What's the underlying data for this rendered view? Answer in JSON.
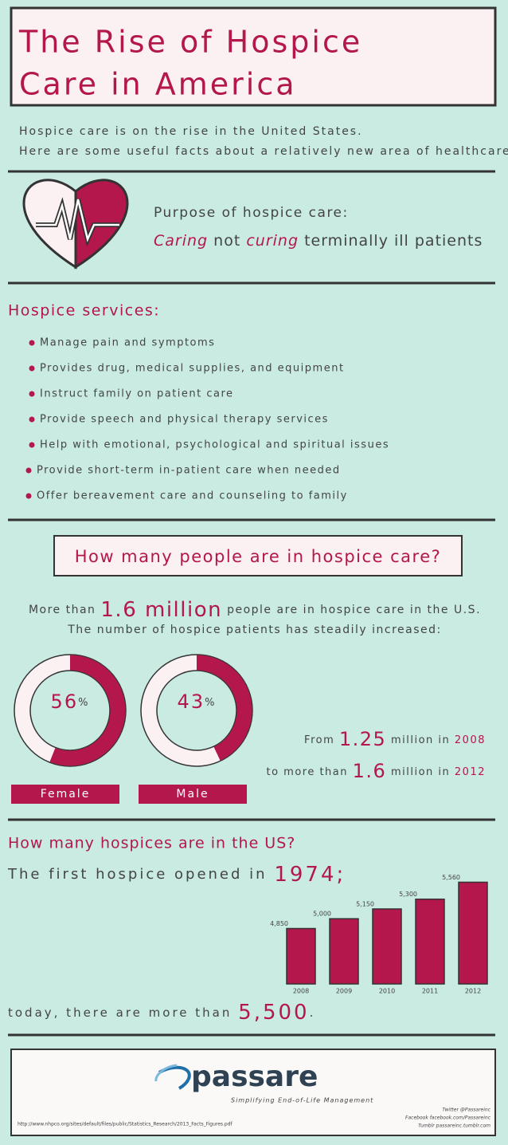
{
  "header": {
    "title": [
      "The Rise of Hospice",
      "Care in America"
    ],
    "intro": [
      "Hospice care is on the rise in the United States.",
      "Here are some useful facts about a relatively new area of healthcare."
    ]
  },
  "purpose": {
    "heading": "Purpose of hospice care:",
    "caring": "Caring",
    "not": "not",
    "curing": "curing",
    "rest": "terminally ill patients"
  },
  "services": {
    "heading": "Hospice services:",
    "items": [
      "Manage pain and symptoms",
      "Provides drug, medical supplies, and equipment",
      "Instruct family on patient care",
      "Provide speech and physical therapy services",
      "Help with emotional, psychological and spiritual issues",
      "Provide short-term in-patient care when needed",
      "Offer bereavement care and counseling to family"
    ]
  },
  "people": {
    "heading": "How many people are in hospice care?",
    "line1": {
      "pre": "More than",
      "num": "1.6 million",
      "post": "people are in hospice care in the U.S."
    },
    "line2": "The number of hospice patients has steadily increased:",
    "from": {
      "pre": "From",
      "num": "1.25",
      "mid": "million in",
      "year": "2008"
    },
    "to": {
      "pre": "to more than",
      "num": "1.6",
      "mid": "million in",
      "year": "2012"
    }
  },
  "hospices": {
    "heading": "How many hospices are in the US?",
    "first": {
      "pre": "The first hospice opened in",
      "year": "1974",
      "post": ";"
    },
    "today": {
      "pre": "today, there are more than",
      "num": "5,500",
      "post": "."
    }
  },
  "footer": {
    "logo": "passare",
    "tagline": "Simplifying End-of-Life Management",
    "source": "http://www.nhpco.org/sites/default/files/public/Statistics_Research/2013_Facts_Figures.pdf",
    "social": [
      "Twitter @Passareinc",
      "Facebook facebook.com/Passareinc",
      "Tumblr passareinc.tumblr.com"
    ]
  },
  "chart_data": [
    {
      "type": "donut",
      "category": "Female",
      "value": 56,
      "unit": "%",
      "color": "#b3174b"
    },
    {
      "type": "donut",
      "category": "Male",
      "value": 43,
      "unit": "%",
      "color": "#b3174b"
    },
    {
      "type": "bar",
      "categories": [
        "2008",
        "2009",
        "2010",
        "2011",
        "2012"
      ],
      "values": [
        4850,
        5000,
        5150,
        5300,
        5560
      ],
      "value_labels": [
        "4,850",
        "5,000",
        "5,150",
        "5,300",
        "5,560"
      ],
      "color": "#b3174b",
      "ylim": [
        4000,
        5700
      ]
    }
  ]
}
